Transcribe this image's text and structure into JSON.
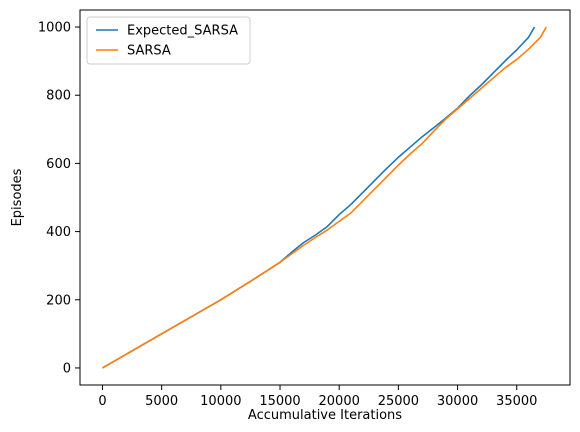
{
  "chart_data": {
    "type": "line",
    "title": "",
    "xlabel": "Accumulative Iterations",
    "ylabel": "Episodes",
    "xlim": [
      -1900,
      39500
    ],
    "ylim": [
      -50,
      1050
    ],
    "xticks": [
      0,
      5000,
      10000,
      15000,
      20000,
      25000,
      30000,
      35000
    ],
    "yticks": [
      0,
      200,
      400,
      600,
      800,
      1000
    ],
    "grid": false,
    "legend_position": "top-left",
    "series": [
      {
        "name": "Expected_SARSA",
        "color": "#1f77b4",
        "x": [
          0,
          5000,
          10000,
          13000,
          15000,
          16000,
          17000,
          18000,
          19000,
          20000,
          21000,
          22000,
          23000,
          24000,
          25000,
          26000,
          27000,
          28000,
          29000,
          30000,
          31000,
          32000,
          33000,
          34000,
          35000,
          36000,
          36500
        ],
        "y": [
          0,
          100,
          200,
          265,
          310,
          340,
          368,
          390,
          415,
          450,
          480,
          515,
          550,
          585,
          618,
          648,
          678,
          705,
          733,
          762,
          798,
          830,
          865,
          900,
          933,
          970,
          1000
        ]
      },
      {
        "name": "SARSA",
        "color": "#ff7f0e",
        "x": [
          0,
          5000,
          10000,
          13000,
          15000,
          16000,
          17000,
          18000,
          19000,
          20000,
          21000,
          22000,
          23000,
          24000,
          25000,
          26000,
          27000,
          28000,
          29000,
          30000,
          31000,
          32000,
          33000,
          34000,
          35000,
          36000,
          37000,
          37500
        ],
        "y": [
          0,
          100,
          200,
          265,
          310,
          335,
          360,
          383,
          405,
          430,
          455,
          490,
          525,
          560,
          595,
          628,
          658,
          695,
          730,
          760,
          790,
          820,
          850,
          880,
          905,
          935,
          970,
          1000
        ]
      }
    ]
  }
}
